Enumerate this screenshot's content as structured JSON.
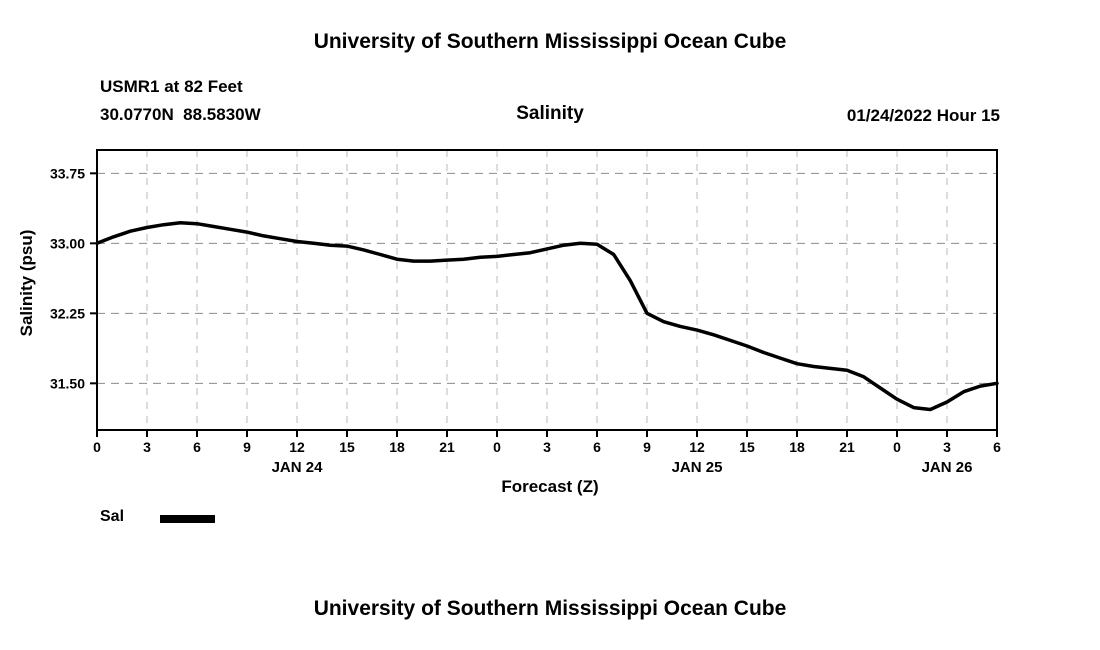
{
  "page_title": "University of Southern Mississippi Ocean Cube",
  "header": {
    "station": "USMR1 at 82 Feet",
    "coordinates": "30.0770N  88.5830W",
    "plot_title": "Salinity",
    "datetime": "01/24/2022 Hour 15"
  },
  "legend": {
    "label": "Sal"
  },
  "chart_data": {
    "type": "line",
    "title": "Salinity",
    "xlabel": "Forecast (Z)",
    "ylabel": "Salinity (psu)",
    "xlim": [
      0,
      54
    ],
    "ylim": [
      31.0,
      34.0
    ],
    "grid": "dashed",
    "legend_position": "below-left",
    "y_ticks": [
      33.75,
      33.0,
      32.25,
      31.5
    ],
    "x_ticks": [
      {
        "hour": 0,
        "label": "0"
      },
      {
        "hour": 3,
        "label": "3"
      },
      {
        "hour": 6,
        "label": "6"
      },
      {
        "hour": 9,
        "label": "9"
      },
      {
        "hour": 12,
        "label": "12"
      },
      {
        "hour": 15,
        "label": "15"
      },
      {
        "hour": 18,
        "label": "18"
      },
      {
        "hour": 21,
        "label": "21"
      },
      {
        "hour": 24,
        "label": "0"
      },
      {
        "hour": 27,
        "label": "3"
      },
      {
        "hour": 30,
        "label": "6"
      },
      {
        "hour": 33,
        "label": "9"
      },
      {
        "hour": 36,
        "label": "12"
      },
      {
        "hour": 39,
        "label": "15"
      },
      {
        "hour": 42,
        "label": "18"
      },
      {
        "hour": 45,
        "label": "21"
      },
      {
        "hour": 48,
        "label": "0"
      },
      {
        "hour": 51,
        "label": "3"
      },
      {
        "hour": 54,
        "label": "6"
      }
    ],
    "day_labels": [
      {
        "hour": 12,
        "label": "JAN 24"
      },
      {
        "hour": 36,
        "label": "JAN 25"
      },
      {
        "hour": 51,
        "label": "JAN 26"
      }
    ],
    "series": [
      {
        "name": "Sal",
        "color": "#000000",
        "x": [
          0,
          1,
          2,
          3,
          4,
          5,
          6,
          7,
          8,
          9,
          10,
          11,
          12,
          13,
          14,
          15,
          16,
          17,
          18,
          19,
          20,
          21,
          22,
          23,
          24,
          25,
          26,
          27,
          28,
          29,
          30,
          31,
          32,
          33,
          34,
          35,
          36,
          37,
          38,
          39,
          40,
          41,
          42,
          43,
          44,
          45,
          46,
          47,
          48,
          49,
          50,
          51,
          52,
          53,
          54
        ],
        "values": [
          33.0,
          33.07,
          33.13,
          33.17,
          33.2,
          33.22,
          33.21,
          33.18,
          33.15,
          33.12,
          33.08,
          33.05,
          33.02,
          33.0,
          32.98,
          32.97,
          32.93,
          32.88,
          32.83,
          32.81,
          32.81,
          32.82,
          32.83,
          32.85,
          32.86,
          32.88,
          32.9,
          32.94,
          32.98,
          33.0,
          32.99,
          32.88,
          32.6,
          32.25,
          32.16,
          32.11,
          32.07,
          32.02,
          31.96,
          31.9,
          31.83,
          31.77,
          31.71,
          31.68,
          31.66,
          31.64,
          31.57,
          31.45,
          31.33,
          31.24,
          31.22,
          31.3,
          31.41,
          31.47,
          31.5
        ]
      }
    ]
  }
}
